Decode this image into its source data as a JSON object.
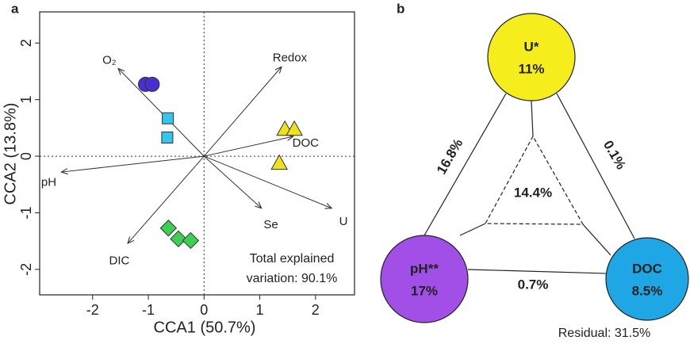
{
  "chart_data": {
    "type": "biplot",
    "panel_label": "a",
    "x_label": "CCA1 (50.7%)",
    "y_label": "CCA2 (13.8%)",
    "xlim": [
      -2.95,
      2.7
    ],
    "ylim": [
      -2.45,
      2.55
    ],
    "xticks": [
      -2,
      -1,
      0,
      1,
      2
    ],
    "yticks": [
      -2,
      -1,
      0,
      1,
      2
    ],
    "annotation": [
      "Total explained",
      "variation: 90.1%"
    ],
    "series": [
      {
        "marker": "circle",
        "color": "#4a2fd0",
        "x": [
          -1.05,
          -0.93
        ],
        "y": [
          1.27,
          1.27
        ]
      },
      {
        "marker": "square",
        "color": "#33c6ea",
        "x": [
          -0.65,
          -0.66
        ],
        "y": [
          0.67,
          0.33
        ]
      },
      {
        "marker": "triangle",
        "color": "#eee21e",
        "x": [
          1.45,
          1.62,
          1.35
        ],
        "y": [
          0.48,
          0.48,
          -0.12
        ]
      },
      {
        "marker": "diamond",
        "color": "#3ccf55",
        "x": [
          -0.64,
          -0.46,
          -0.24
        ],
        "y": [
          -1.27,
          -1.46,
          -1.49
        ]
      }
    ],
    "vectors": [
      {
        "label": "O₂",
        "x": -1.54,
        "y": 1.55
      },
      {
        "label": "Redox",
        "x": 1.39,
        "y": 1.58
      },
      {
        "label": "DOC",
        "x": 1.6,
        "y": 0.35
      },
      {
        "label": "pH",
        "x": -2.56,
        "y": -0.28
      },
      {
        "label": "U",
        "x": 2.29,
        "y": -0.92
      },
      {
        "label": "Se",
        "x": 1.03,
        "y": -0.92
      },
      {
        "label": "DIC",
        "x": -1.37,
        "y": -1.54
      }
    ]
  },
  "panel_b": {
    "panel_label": "b",
    "circles": [
      {
        "name": "U*",
        "share": "11%",
        "color": "#f6ee1c"
      },
      {
        "name": "pH**",
        "share": "17%",
        "color": "#a24fe8"
      },
      {
        "name": "DOC",
        "share": "8.5%",
        "color": "#1fa6e4"
      }
    ],
    "shared_u_ph": "16.8%",
    "shared_u_doc": "0.1%",
    "shared_ph_doc": "0.7%",
    "shared_all": "14.4%",
    "residual": "Residual: 31.5%"
  }
}
